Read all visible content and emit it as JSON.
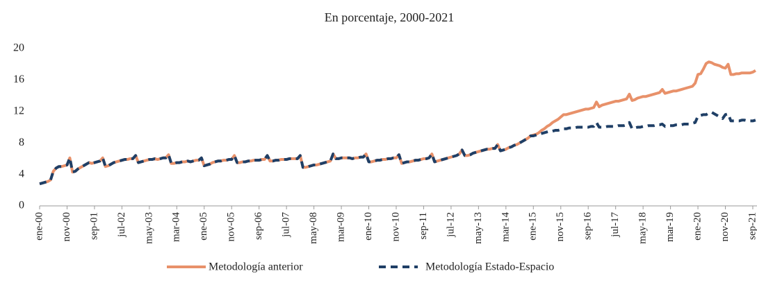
{
  "chart_data": {
    "type": "line",
    "title": "En porcentaje, 2000-2021",
    "categories": [
      "ene-00",
      null,
      null,
      null,
      null,
      null,
      null,
      null,
      null,
      null,
      "nov-00",
      null,
      null,
      null,
      null,
      null,
      null,
      null,
      null,
      null,
      "sep-01",
      null,
      null,
      null,
      null,
      null,
      null,
      null,
      null,
      null,
      "jul-02",
      null,
      null,
      null,
      null,
      null,
      null,
      null,
      null,
      null,
      "may-03",
      null,
      null,
      null,
      null,
      null,
      null,
      null,
      null,
      null,
      "mar-04",
      null,
      null,
      null,
      null,
      null,
      null,
      null,
      null,
      null,
      "ene-05",
      null,
      null,
      null,
      null,
      null,
      null,
      null,
      null,
      null,
      "nov-05",
      null,
      null,
      null,
      null,
      null,
      null,
      null,
      null,
      null,
      "sep-06",
      null,
      null,
      null,
      null,
      null,
      null,
      null,
      null,
      null,
      "jul-07",
      null,
      null,
      null,
      null,
      null,
      null,
      null,
      null,
      null,
      "may-08",
      null,
      null,
      null,
      null,
      null,
      null,
      null,
      null,
      null,
      "mar-09",
      null,
      null,
      null,
      null,
      null,
      null,
      null,
      null,
      null,
      "ene-10",
      null,
      null,
      null,
      null,
      null,
      null,
      null,
      null,
      null,
      "nov-10",
      null,
      null,
      null,
      null,
      null,
      null,
      null,
      null,
      null,
      "sep-11",
      null,
      null,
      null,
      null,
      null,
      null,
      null,
      null,
      null,
      "jul-12",
      null,
      null,
      null,
      null,
      null,
      null,
      null,
      null,
      null,
      "may-13",
      null,
      null,
      null,
      null,
      null,
      null,
      null,
      null,
      null,
      "mar-14",
      null,
      null,
      null,
      null,
      null,
      null,
      null,
      null,
      null,
      "ene-15",
      null,
      null,
      null,
      null,
      null,
      null,
      null,
      null,
      null,
      "nov-15",
      null,
      null,
      null,
      null,
      null,
      null,
      null,
      null,
      null,
      "sep-16",
      null,
      null,
      null,
      null,
      null,
      null,
      null,
      null,
      null,
      "jul-17",
      null,
      null,
      null,
      null,
      null,
      null,
      null,
      null,
      null,
      "may-18",
      null,
      null,
      null,
      null,
      null,
      null,
      null,
      null,
      null,
      "mar-19",
      null,
      null,
      null,
      null,
      null,
      null,
      null,
      null,
      null,
      "ene-20",
      null,
      null,
      null,
      null,
      null,
      null,
      null,
      null,
      null,
      "nov-20",
      null,
      null,
      null,
      null,
      null,
      null,
      null,
      null,
      null,
      "sep-21",
      null
    ],
    "series": [
      {
        "name": "Metodología anterior",
        "color": "#e8916a",
        "dash": false,
        "values": [
          2.8,
          2.9,
          3.0,
          3.1,
          3.3,
          4.4,
          4.8,
          5.0,
          5.0,
          5.1,
          5.2,
          6.1,
          4.3,
          4.4,
          4.7,
          4.9,
          5.1,
          5.3,
          5.5,
          5.4,
          5.5,
          5.6,
          5.7,
          6.1,
          5.0,
          5.1,
          5.3,
          5.5,
          5.6,
          5.7,
          5.8,
          5.9,
          5.9,
          6.0,
          6.0,
          6.4,
          5.5,
          5.6,
          5.7,
          5.8,
          5.9,
          5.9,
          6.0,
          5.9,
          6.0,
          6.1,
          6.1,
          6.5,
          5.4,
          5.4,
          5.5,
          5.5,
          5.6,
          5.6,
          5.7,
          5.6,
          5.7,
          5.8,
          5.8,
          6.1,
          5.1,
          5.2,
          5.3,
          5.5,
          5.6,
          5.7,
          5.7,
          5.8,
          5.8,
          5.9,
          5.9,
          6.4,
          5.5,
          5.5,
          5.6,
          5.6,
          5.7,
          5.7,
          5.8,
          5.8,
          5.8,
          5.9,
          5.9,
          6.4,
          5.7,
          5.7,
          5.8,
          5.8,
          5.9,
          5.9,
          5.9,
          6.0,
          6.0,
          6.0,
          6.0,
          6.4,
          4.9,
          4.9,
          5.0,
          5.1,
          5.2,
          5.2,
          5.3,
          5.4,
          5.5,
          5.6,
          5.7,
          6.6,
          6.0,
          6.0,
          6.1,
          6.1,
          6.1,
          6.1,
          6.0,
          6.1,
          6.1,
          6.2,
          6.2,
          6.6,
          5.6,
          5.6,
          5.7,
          5.8,
          5.8,
          5.9,
          5.9,
          6.0,
          6.0,
          6.1,
          6.1,
          6.5,
          5.4,
          5.5,
          5.6,
          5.6,
          5.7,
          5.8,
          5.8,
          5.9,
          6.0,
          6.0,
          6.1,
          6.6,
          5.6,
          5.7,
          5.8,
          5.9,
          6.0,
          6.1,
          6.2,
          6.3,
          6.4,
          6.6,
          7.1,
          6.4,
          6.4,
          6.5,
          6.7,
          6.8,
          6.9,
          7.0,
          7.1,
          7.2,
          7.2,
          7.3,
          7.3,
          7.8,
          7.0,
          7.1,
          7.2,
          7.4,
          7.5,
          7.7,
          7.8,
          8.0,
          8.2,
          8.4,
          8.6,
          8.9,
          9.0,
          9.1,
          9.3,
          9.6,
          9.8,
          10.1,
          10.3,
          10.6,
          10.8,
          11.0,
          11.3,
          11.6,
          11.6,
          11.7,
          11.8,
          11.9,
          12.0,
          12.1,
          12.2,
          12.3,
          12.3,
          12.4,
          12.5,
          13.2,
          12.6,
          12.8,
          12.9,
          13.0,
          13.1,
          13.2,
          13.3,
          13.3,
          13.4,
          13.5,
          13.6,
          14.2,
          13.4,
          13.5,
          13.7,
          13.8,
          13.9,
          13.9,
          14.0,
          14.1,
          14.2,
          14.3,
          14.4,
          14.8,
          14.3,
          14.4,
          14.5,
          14.6,
          14.6,
          14.7,
          14.8,
          14.9,
          15.0,
          15.1,
          15.2,
          15.6,
          16.7,
          16.8,
          17.4,
          18.1,
          18.3,
          18.2,
          18.0,
          17.9,
          17.8,
          17.6,
          17.5,
          18.0,
          16.7,
          16.7,
          16.8,
          16.8,
          16.9,
          16.9,
          16.9,
          16.9,
          17.0,
          17.2
        ]
      },
      {
        "name": "Metodología Estado-Espacio",
        "color": "#1f3f66",
        "dash": true,
        "values": [
          2.8,
          2.9,
          3.0,
          3.1,
          3.3,
          4.4,
          4.8,
          5.0,
          5.0,
          5.1,
          5.2,
          6.1,
          4.3,
          4.4,
          4.7,
          4.9,
          5.1,
          5.3,
          5.5,
          5.4,
          5.5,
          5.6,
          5.7,
          6.1,
          5.0,
          5.1,
          5.3,
          5.5,
          5.6,
          5.7,
          5.8,
          5.9,
          5.9,
          6.0,
          6.0,
          6.4,
          5.5,
          5.6,
          5.7,
          5.8,
          5.9,
          5.9,
          6.0,
          5.9,
          6.0,
          6.1,
          6.1,
          6.5,
          5.4,
          5.4,
          5.5,
          5.5,
          5.6,
          5.6,
          5.7,
          5.6,
          5.7,
          5.8,
          5.8,
          6.1,
          5.1,
          5.2,
          5.3,
          5.5,
          5.6,
          5.7,
          5.7,
          5.8,
          5.8,
          5.9,
          5.9,
          6.4,
          5.5,
          5.5,
          5.6,
          5.6,
          5.7,
          5.7,
          5.8,
          5.8,
          5.8,
          5.9,
          5.9,
          6.4,
          5.7,
          5.7,
          5.8,
          5.8,
          5.9,
          5.9,
          5.9,
          6.0,
          6.0,
          6.0,
          6.0,
          6.4,
          4.9,
          4.9,
          5.0,
          5.1,
          5.2,
          5.2,
          5.3,
          5.4,
          5.5,
          5.6,
          5.7,
          6.6,
          6.0,
          6.0,
          6.1,
          6.1,
          6.1,
          6.1,
          6.0,
          6.1,
          6.1,
          6.2,
          6.2,
          6.6,
          5.6,
          5.6,
          5.7,
          5.8,
          5.8,
          5.9,
          5.9,
          6.0,
          6.0,
          6.1,
          6.1,
          6.5,
          5.4,
          5.5,
          5.6,
          5.6,
          5.7,
          5.8,
          5.8,
          5.9,
          6.0,
          6.0,
          6.1,
          6.6,
          5.6,
          5.7,
          5.8,
          5.9,
          6.0,
          6.1,
          6.2,
          6.3,
          6.4,
          6.6,
          7.1,
          6.4,
          6.4,
          6.5,
          6.7,
          6.8,
          6.9,
          7.0,
          7.1,
          7.2,
          7.2,
          7.3,
          7.3,
          7.8,
          7.0,
          7.1,
          7.2,
          7.4,
          7.5,
          7.7,
          7.8,
          8.0,
          8.2,
          8.4,
          8.6,
          8.9,
          8.9,
          9.0,
          9.1,
          9.2,
          9.3,
          9.4,
          9.5,
          9.5,
          9.6,
          9.6,
          9.7,
          9.8,
          9.8,
          9.9,
          9.9,
          9.9,
          10.0,
          10.0,
          10.0,
          10.0,
          10.0,
          10.1,
          10.1,
          10.6,
          10.0,
          10.0,
          10.0,
          10.1,
          10.1,
          10.1,
          10.1,
          10.2,
          10.2,
          10.2,
          10.3,
          10.6,
          9.8,
          9.9,
          10.0,
          10.0,
          10.1,
          10.1,
          10.2,
          10.2,
          10.2,
          10.3,
          10.3,
          10.4,
          10.1,
          10.2,
          10.2,
          10.2,
          10.3,
          10.3,
          10.3,
          10.4,
          10.4,
          10.4,
          10.5,
          10.6,
          11.4,
          11.5,
          11.6,
          11.6,
          11.8,
          11.9,
          11.7,
          11.5,
          11.3,
          11.1,
          11.6,
          11.7,
          10.8,
          10.8,
          10.8,
          10.8,
          10.9,
          10.9,
          10.8,
          10.8,
          10.8,
          10.9
        ]
      }
    ],
    "ylim": [
      0,
      20
    ],
    "yticks": [
      0,
      4,
      8,
      12,
      16,
      20
    ],
    "grid": false
  }
}
